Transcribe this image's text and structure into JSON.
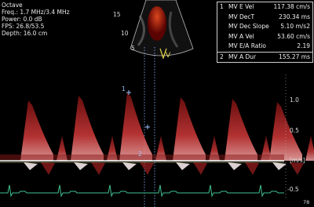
{
  "header": {
    "probe": "Octave",
    "lines": [
      "Freq.: 1.7 MHz/3.4 MHz",
      "Power: 0.0 dB",
      "FPS: 26.8/53.5",
      "Depth: 16.0 cm"
    ]
  },
  "sector": {
    "depth_marks": [
      "15",
      "10",
      "5"
    ],
    "label": "V"
  },
  "measurements": [
    {
      "index": "1",
      "name": "MV E Vel",
      "value": "117.38 cm/s"
    },
    {
      "name": "MV DecT",
      "value": "230.34 ms"
    },
    {
      "name": "MV Dec Slope",
      "value": "5.10 m/s2"
    },
    {
      "name": "MV A Vel",
      "value": "53.60 cm/s"
    },
    {
      "name": "MV E/A Ratio",
      "value": "2.19"
    },
    {
      "index": "2",
      "name": "MV A Dur",
      "value": "155.27 ms"
    }
  ],
  "scale": {
    "labels": [
      "1.0",
      "0.5",
      "[m/s]",
      "-0.5"
    ]
  },
  "calipers": [
    "1",
    "2"
  ],
  "footer": "78"
}
